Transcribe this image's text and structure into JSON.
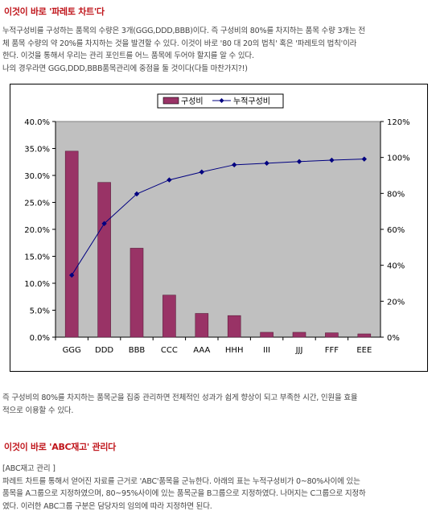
{
  "section1": {
    "title": "이것이 바로 '파레토 차트'다",
    "lines": [
      "누적구성비를 구성하는 품목의 수량은 3개(GGG,DDD,BBB)이다. 즉 구성비의 80%를 차지하는 품목 수량 3개는 전",
      "체 품목 수량의 약 20%를 차지하는 것을 발견할 수 있다. 이것이 바로 '80 대 20의 법칙' 혹은 '파레토의 법칙'이라",
      "한다. 이것을 통해서 우리는 관리 포인트를 어느 품목에 두어야 할지를 알 수 있다.",
      "나의 경우라면 GGG,DDD,BBB품목관리에 중점을 둘 것이다(다들 마찬가지?!)"
    ]
  },
  "chart_data": {
    "type": "bar",
    "categories": [
      "GGG",
      "DDD",
      "BBB",
      "CCC",
      "AAA",
      "HHH",
      "III",
      "JJJ",
      "FFF",
      "EEE"
    ],
    "series": [
      {
        "name": "구성비",
        "type": "bar",
        "axis": "left",
        "color": "#993366",
        "values": [
          34.5,
          28.7,
          16.5,
          7.8,
          4.4,
          4.0,
          0.9,
          0.9,
          0.8,
          0.6
        ]
      },
      {
        "name": "누적구성비",
        "type": "line",
        "axis": "right",
        "color": "#000080",
        "values": [
          34.5,
          63.2,
          79.7,
          87.5,
          91.9,
          95.9,
          96.8,
          97.7,
          98.5,
          99.1
        ]
      }
    ],
    "left_axis": {
      "min": 0,
      "max": 40,
      "step": 5,
      "tick_labels": [
        "0.0%",
        "5.0%",
        "10.0%",
        "15.0%",
        "20.0%",
        "25.0%",
        "30.0%",
        "35.0%",
        "40.0%"
      ]
    },
    "right_axis": {
      "min": 0,
      "max": 120,
      "step": 20,
      "tick_labels": [
        "0%",
        "20%",
        "40%",
        "60%",
        "80%",
        "100%",
        "120%"
      ]
    },
    "legend_position": "top",
    "plot_background": "#c0c0c0",
    "grid": false
  },
  "section2": {
    "lines": [
      " 즉 구성비의 80%를 차지하는 품목군을 집중 관리하면 전체적인 성과가 쉽게 향상이 되고 부족한 시간, 인원을 효율",
      "적으로 이용할 수 있다."
    ]
  },
  "section3": {
    "title": "이것이 바로 'ABC재고' 관리다",
    "lines": [
      "[ABC재고 관리 ]",
      "파레트 차트를 통해서 얻어진 자료를 근거로 'ABC'품목을 군뉴한다. 아래의 표는 누적구성비가 0~80%사이에 있는",
      "품목을 A그룹으로 지정하였으며, 80~95%사이에 있는 품목군을 B그룹으로 지정하였다. 나머지는 C그룹으로 지정하",
      "였다. 이러한 ABC그룹 구분은 담당자의 임의에 따라 지정하면 된다."
    ]
  }
}
